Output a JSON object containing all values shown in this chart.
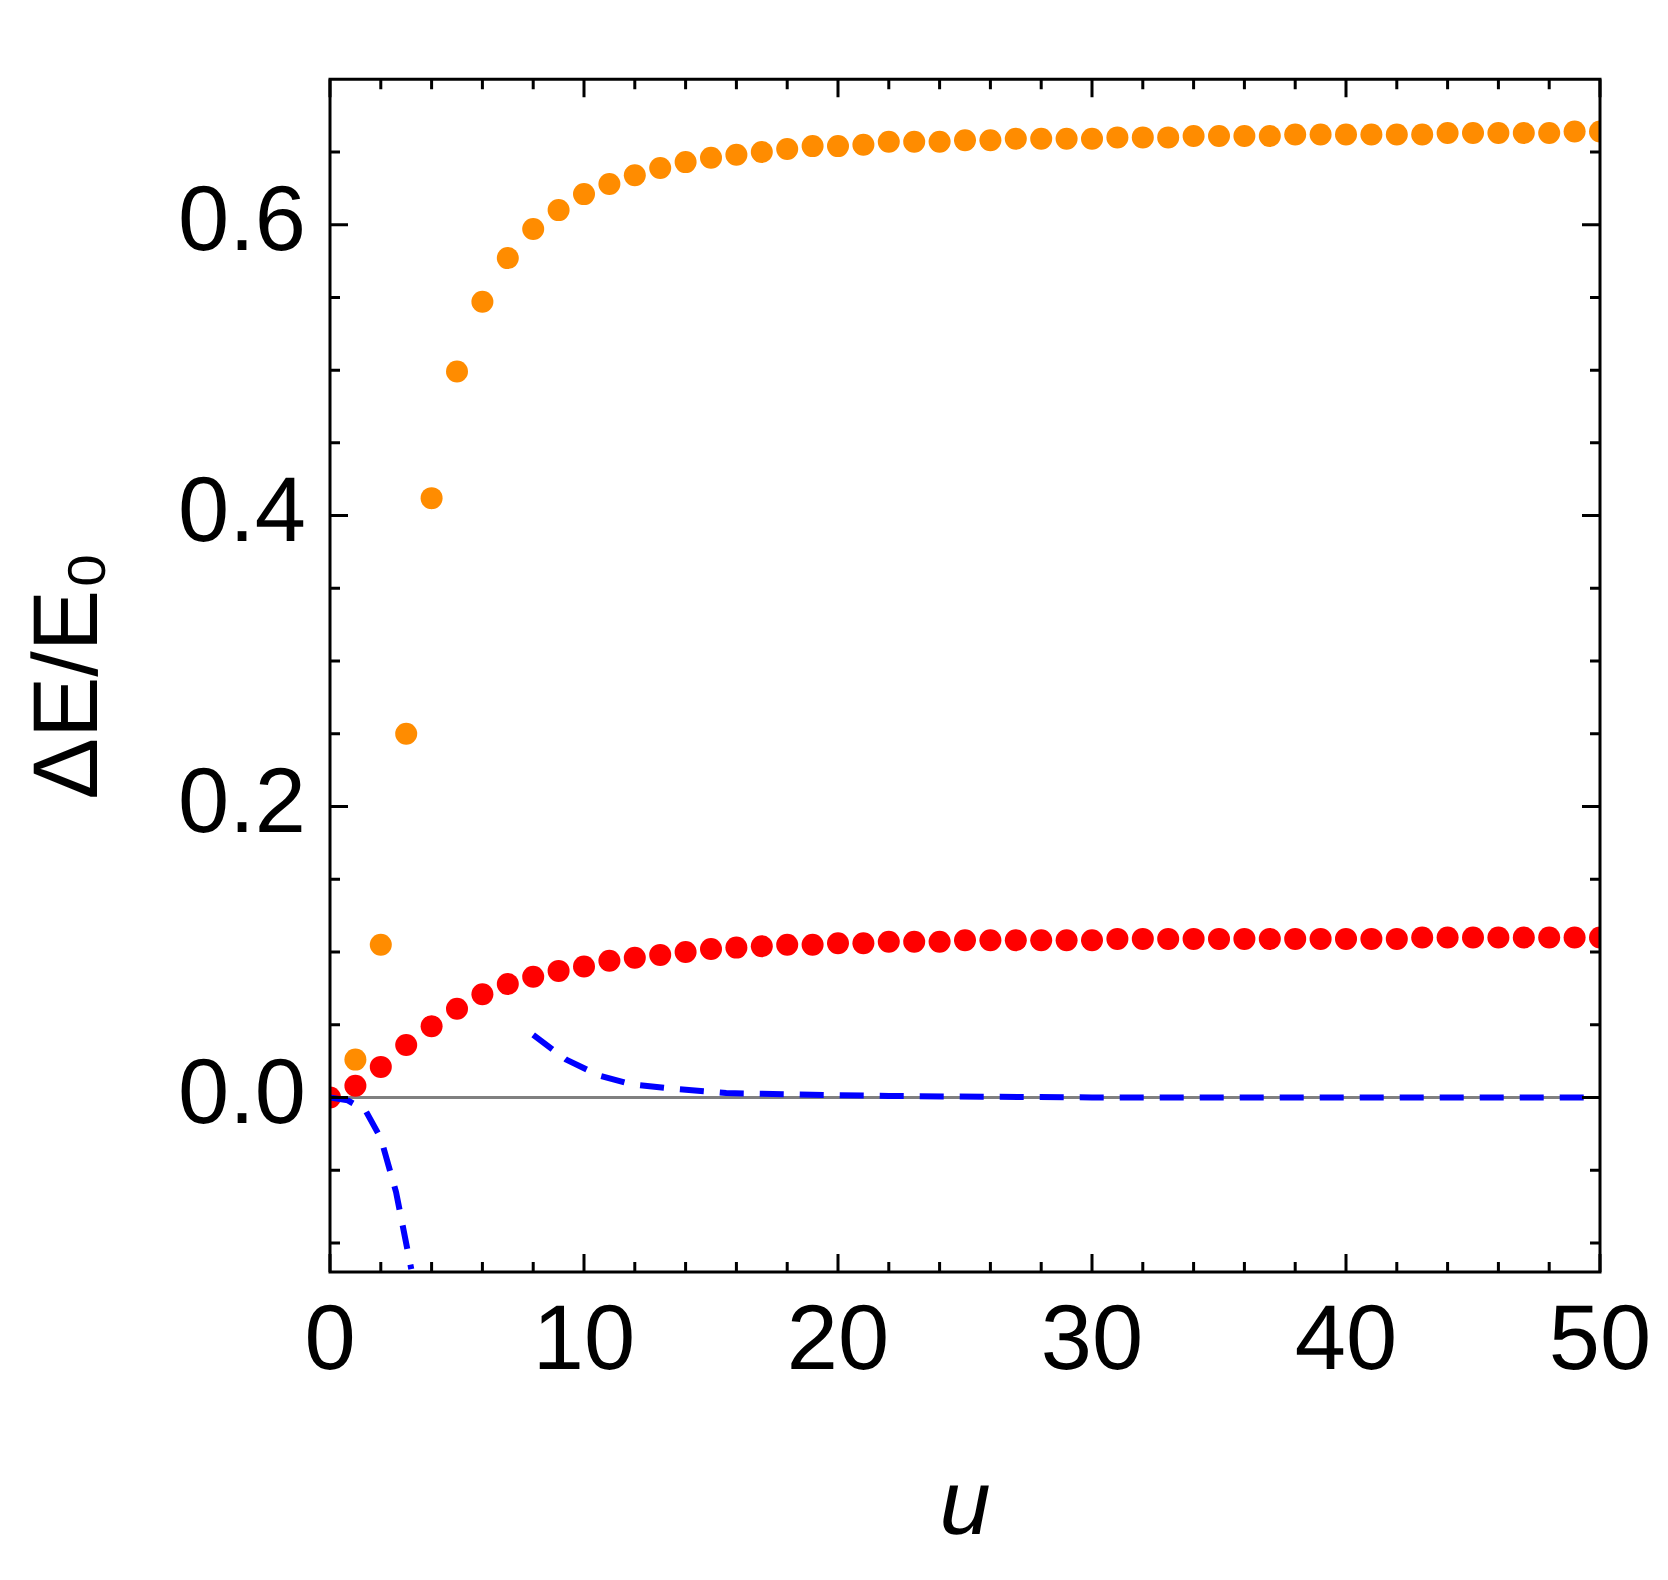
{
  "chart_data": {
    "type": "scatter",
    "xlabel": "u",
    "ylabel": "ΔE/E₀",
    "marker": "circle",
    "xlim": [
      0,
      50
    ],
    "ylim": [
      -0.12,
      0.7
    ],
    "xticks": [
      0,
      {
        "value": 2,
        "label": null
      },
      {
        "value": 4,
        "label": null
      },
      {
        "value": 6,
        "label": null
      },
      {
        "value": 8,
        "label": null
      },
      10,
      {
        "value": 12,
        "label": null
      },
      {
        "value": 14,
        "label": null
      },
      {
        "value": 16,
        "label": null
      },
      {
        "value": 18,
        "label": null
      },
      20,
      {
        "value": 22,
        "label": null
      },
      {
        "value": 24,
        "label": null
      },
      {
        "value": 26,
        "label": null
      },
      {
        "value": 28,
        "label": null
      },
      30,
      {
        "value": 32,
        "label": null
      },
      {
        "value": 34,
        "label": null
      },
      {
        "value": 36,
        "label": null
      },
      {
        "value": 38,
        "label": null
      },
      40,
      {
        "value": 42,
        "label": null
      },
      {
        "value": 44,
        "label": null
      },
      {
        "value": 46,
        "label": null
      },
      {
        "value": 48,
        "label": null
      },
      50
    ],
    "yticks": [
      {
        "value": -0.1,
        "label": null
      },
      {
        "value": -0.05,
        "label": null
      },
      {
        "value": 0,
        "label": "0.0"
      },
      {
        "value": 0.05,
        "label": null
      },
      {
        "value": 0.1,
        "label": null
      },
      {
        "value": 0.15,
        "label": null
      },
      {
        "value": 0.2,
        "label": "0.2"
      },
      {
        "value": 0.25,
        "label": null
      },
      {
        "value": 0.3,
        "label": null
      },
      {
        "value": 0.35,
        "label": null
      },
      {
        "value": 0.4,
        "label": "0.4"
      },
      {
        "value": 0.45,
        "label": null
      },
      {
        "value": 0.5,
        "label": null
      },
      {
        "value": 0.55,
        "label": null
      },
      {
        "value": 0.6,
        "label": "0.6"
      },
      {
        "value": 0.65,
        "label": null
      }
    ],
    "ref_lines": [
      {
        "axis": "y",
        "value": 0,
        "color": "#808080"
      }
    ],
    "series": [
      {
        "type": "line",
        "marker": "none",
        "line_style": "dashed",
        "color": "#0000ff",
        "x": [
          0,
          0.7,
          1.4,
          2,
          2.6,
          3.2
        ],
        "values": [
          0,
          -0.002,
          -0.009,
          -0.028,
          -0.065,
          -0.118
        ]
      },
      {
        "type": "line",
        "marker": "none",
        "line_style": "dashed",
        "color": "#0000ff",
        "x": [
          8,
          9.3,
          10.6,
          11.9,
          13.5,
          15.6,
          18.5,
          22,
          30,
          40,
          50
        ],
        "values": [
          0.043,
          0.026,
          0.015,
          0.009,
          0.006,
          0.003,
          0.002,
          0.001,
          0,
          0,
          0
        ]
      },
      {
        "color": "#ff8c00",
        "x": [
          1,
          2,
          3,
          4,
          5,
          6,
          7,
          8,
          9,
          10,
          11,
          12,
          13,
          14,
          15,
          16,
          17,
          18,
          19,
          20,
          21,
          22,
          23,
          24,
          25,
          26,
          27,
          28,
          29,
          30,
          31,
          32,
          33,
          34,
          35,
          36,
          37,
          38,
          39,
          40,
          41,
          42,
          43,
          44,
          45,
          46,
          47,
          48,
          49,
          50
        ],
        "values": [
          0.026,
          0.105,
          0.25,
          0.412,
          0.499,
          0.547,
          0.577,
          0.597,
          0.61,
          0.621,
          0.628,
          0.634,
          0.639,
          0.643,
          0.646,
          0.648,
          0.65,
          0.652,
          0.654,
          0.654,
          0.655,
          0.657,
          0.657,
          0.657,
          0.658,
          0.658,
          0.659,
          0.659,
          0.659,
          0.659,
          0.66,
          0.66,
          0.66,
          0.661,
          0.661,
          0.661,
          0.661,
          0.662,
          0.662,
          0.662,
          0.662,
          0.662,
          0.662,
          0.663,
          0.663,
          0.663,
          0.663,
          0.663,
          0.664,
          0.664
        ]
      },
      {
        "color": "#ff0000",
        "x": [
          0,
          1,
          2,
          3,
          4,
          5,
          6,
          7,
          8,
          9,
          10,
          11,
          12,
          13,
          14,
          15,
          16,
          17,
          18,
          19,
          20,
          21,
          22,
          23,
          24,
          25,
          26,
          27,
          28,
          29,
          30,
          31,
          32,
          33,
          34,
          35,
          36,
          37,
          38,
          39,
          40,
          41,
          42,
          43,
          44,
          45,
          46,
          47,
          48,
          49,
          50
        ],
        "values": [
          0,
          0.008,
          0.021,
          0.036,
          0.049,
          0.061,
          0.071,
          0.078,
          0.083,
          0.087,
          0.09,
          0.094,
          0.096,
          0.098,
          0.1,
          0.102,
          0.103,
          0.104,
          0.105,
          0.105,
          0.106,
          0.106,
          0.107,
          0.107,
          0.107,
          0.108,
          0.108,
          0.108,
          0.108,
          0.108,
          0.108,
          0.109,
          0.109,
          0.109,
          0.109,
          0.109,
          0.109,
          0.109,
          0.109,
          0.109,
          0.109,
          0.109,
          0.109,
          0.11,
          0.11,
          0.11,
          0.11,
          0.11,
          0.11,
          0.11,
          0.11
        ]
      }
    ]
  }
}
